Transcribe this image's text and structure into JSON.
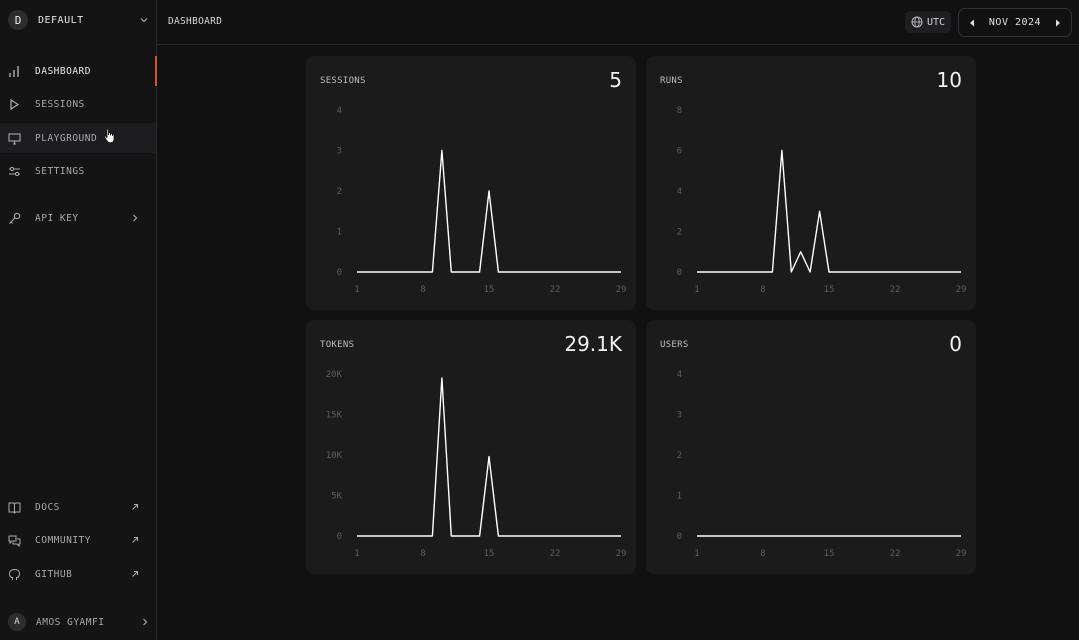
{
  "workspace": {
    "initial": "D",
    "name": "DEFAULT"
  },
  "nav": [
    {
      "label": "DASHBOARD",
      "icon": "bar-chart-icon"
    },
    {
      "label": "SESSIONS",
      "icon": "play-icon"
    },
    {
      "label": "PLAYGROUND",
      "icon": "monitor-icon"
    },
    {
      "label": "SETTINGS",
      "icon": "sliders-icon"
    },
    {
      "label": "API KEY",
      "icon": "key-icon"
    }
  ],
  "footer_nav": [
    {
      "label": "DOCS",
      "icon": "book-icon"
    },
    {
      "label": "COMMUNITY",
      "icon": "chat-icon"
    },
    {
      "label": "GITHUB",
      "icon": "github-icon"
    }
  ],
  "user": {
    "initial": "A",
    "name": "AMOS GYAMFI"
  },
  "header": {
    "breadcrumb": "DASHBOARD",
    "timezone": "UTC",
    "month": "NOV 2024"
  },
  "colors": {
    "accent": "#d2532e",
    "line": "#ffffff",
    "card": "#1b1b1c",
    "background": "#111112"
  },
  "cards": [
    {
      "title": "SESSIONS",
      "value": "5"
    },
    {
      "title": "RUNS",
      "value": "10"
    },
    {
      "title": "TOKENS",
      "value": "29.1K"
    },
    {
      "title": "USERS",
      "value": "0"
    }
  ],
  "chart_data": [
    {
      "type": "line",
      "title": "SESSIONS",
      "x": [
        1,
        9,
        10,
        11,
        12,
        13,
        14,
        15,
        16,
        29
      ],
      "y": [
        0,
        0,
        3,
        0,
        0,
        0,
        0,
        2,
        0,
        0
      ],
      "x_ticks": [
        "1",
        "8",
        "15",
        "22",
        "29"
      ],
      "y_ticks": [
        "0",
        "1",
        "2",
        "3",
        "4"
      ],
      "ylim": [
        0,
        4
      ]
    },
    {
      "type": "line",
      "title": "RUNS",
      "x": [
        1,
        9,
        10,
        11,
        12,
        13,
        14,
        15,
        16,
        29
      ],
      "y": [
        0,
        0,
        6,
        0,
        1,
        0,
        3,
        0,
        0,
        0
      ],
      "x_ticks": [
        "1",
        "8",
        "15",
        "22",
        "29"
      ],
      "y_ticks": [
        "0",
        "2",
        "4",
        "6",
        "8"
      ],
      "ylim": [
        0,
        8
      ]
    },
    {
      "type": "line",
      "title": "TOKENS",
      "x": [
        1,
        9,
        10,
        11,
        12,
        13,
        14,
        15,
        16,
        29
      ],
      "y": [
        0,
        0,
        19500,
        0,
        0,
        0,
        0,
        9800,
        0,
        0
      ],
      "x_ticks": [
        "1",
        "8",
        "15",
        "22",
        "29"
      ],
      "y_ticks": [
        "0",
        "5K",
        "10K",
        "15K",
        "20K"
      ],
      "ylim": [
        0,
        20000
      ]
    },
    {
      "type": "line",
      "title": "USERS",
      "x": [
        1,
        29
      ],
      "y": [
        0,
        0
      ],
      "x_ticks": [
        "1",
        "8",
        "15",
        "22",
        "29"
      ],
      "y_ticks": [
        "0",
        "1",
        "2",
        "3",
        "4"
      ],
      "ylim": [
        0,
        4
      ]
    }
  ]
}
